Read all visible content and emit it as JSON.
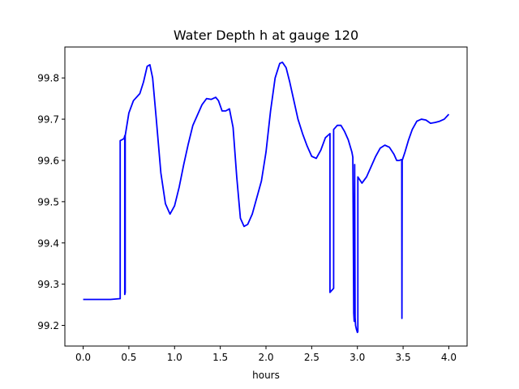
{
  "chart_data": {
    "type": "line",
    "title": "Water Depth h at gauge 120",
    "xlabel": "hours",
    "ylabel": "",
    "xlim": [
      -0.2,
      4.2
    ],
    "ylim": [
      99.15,
      99.875
    ],
    "xticks": [
      0.0,
      0.5,
      1.0,
      1.5,
      2.0,
      2.5,
      3.0,
      3.5,
      4.0
    ],
    "xtick_labels": [
      "0.0",
      "0.5",
      "1.0",
      "1.5",
      "2.0",
      "2.5",
      "3.0",
      "3.5",
      "4.0"
    ],
    "yticks": [
      99.2,
      99.3,
      99.4,
      99.5,
      99.6,
      99.7,
      99.8
    ],
    "ytick_labels": [
      "99.2",
      "99.3",
      "99.4",
      "99.5",
      "99.6",
      "99.7",
      "99.8"
    ],
    "grid": false,
    "legend": "none",
    "series": [
      {
        "color": "#0000ff",
        "x": [
          0.0,
          0.3,
          0.405,
          0.405,
          0.44,
          0.45,
          0.455,
          0.455,
          0.46,
          0.46,
          0.5,
          0.55,
          0.62,
          0.66,
          0.7,
          0.73,
          0.76,
          0.8,
          0.85,
          0.9,
          0.95,
          1.0,
          1.05,
          1.1,
          1.15,
          1.2,
          1.25,
          1.3,
          1.35,
          1.4,
          1.45,
          1.48,
          1.52,
          1.56,
          1.6,
          1.64,
          1.68,
          1.72,
          1.76,
          1.8,
          1.85,
          1.9,
          1.95,
          2.0,
          2.05,
          2.1,
          2.15,
          2.18,
          2.22,
          2.26,
          2.3,
          2.35,
          2.4,
          2.45,
          2.5,
          2.55,
          2.6,
          2.65,
          2.7,
          2.7,
          2.74,
          2.74,
          2.78,
          2.82,
          2.86,
          2.9,
          2.94,
          2.95,
          2.96,
          2.965,
          2.97,
          2.975,
          2.98,
          2.99,
          3.0,
          3.005,
          3.005,
          3.02,
          3.05,
          3.1,
          3.15,
          3.2,
          3.25,
          3.3,
          3.35,
          3.4,
          3.43,
          3.46,
          3.48,
          3.485,
          3.487,
          3.49,
          3.49,
          3.52,
          3.56,
          3.6,
          3.65,
          3.7,
          3.75,
          3.8,
          3.85,
          3.9,
          3.95,
          4.0
        ],
        "y": [
          99.263,
          99.263,
          99.265,
          99.648,
          99.652,
          99.655,
          99.66,
          99.275,
          99.28,
          99.66,
          99.715,
          99.745,
          99.762,
          99.79,
          99.828,
          99.832,
          99.8,
          99.7,
          99.57,
          99.495,
          99.47,
          99.49,
          99.535,
          99.59,
          99.64,
          99.685,
          99.71,
          99.735,
          99.75,
          99.748,
          99.753,
          99.745,
          99.72,
          99.72,
          99.725,
          99.68,
          99.56,
          99.46,
          99.44,
          99.445,
          99.47,
          99.51,
          99.55,
          99.62,
          99.72,
          99.8,
          99.835,
          99.838,
          99.825,
          99.79,
          99.75,
          99.7,
          99.665,
          99.635,
          99.61,
          99.605,
          99.625,
          99.655,
          99.665,
          99.28,
          99.29,
          99.675,
          99.685,
          99.685,
          99.67,
          99.65,
          99.62,
          99.608,
          99.23,
          99.21,
          99.59,
          99.22,
          99.2,
          99.19,
          99.183,
          99.185,
          99.56,
          99.555,
          99.545,
          99.56,
          99.585,
          99.61,
          99.63,
          99.637,
          99.632,
          99.615,
          99.6,
          99.6,
          99.602,
          99.6,
          99.217,
          99.6,
          99.6,
          99.62,
          99.65,
          99.675,
          99.695,
          99.7,
          99.698,
          99.69,
          99.692,
          99.695,
          99.7,
          99.712
        ]
      }
    ]
  }
}
